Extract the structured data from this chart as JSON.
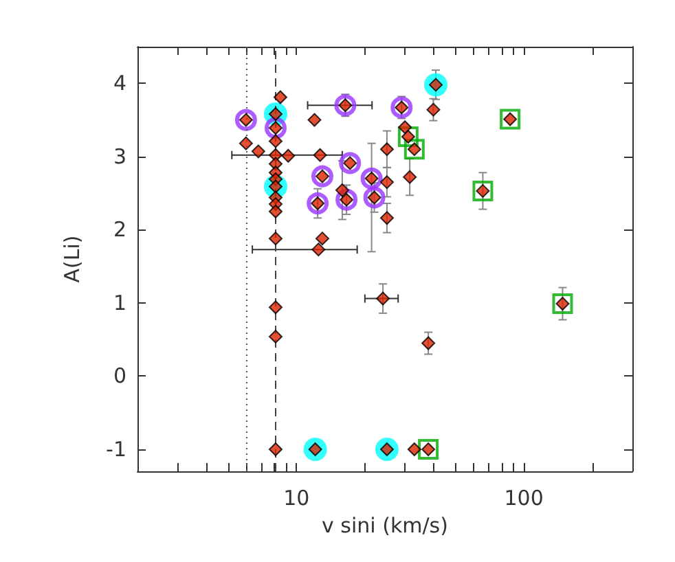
{
  "chart_data": {
    "type": "scatter",
    "xlabel": "v sini (km/s)",
    "ylabel": "A(Li)",
    "log": "x",
    "xlim": [
      2,
      300
    ],
    "xticks": [
      {
        "value": 2,
        "label": null
      },
      {
        "value": 3,
        "label": null
      },
      {
        "value": 4,
        "label": null
      },
      {
        "value": 5,
        "label": null
      },
      {
        "value": 6,
        "label": null
      },
      {
        "value": 7,
        "label": null
      },
      {
        "value": 8,
        "label": null
      },
      {
        "value": 9,
        "label": null
      },
      10,
      {
        "value": 20,
        "label": null
      },
      {
        "value": 30,
        "label": null
      },
      {
        "value": 40,
        "label": null
      },
      {
        "value": 50,
        "label": null
      },
      {
        "value": 60,
        "label": null
      },
      {
        "value": 70,
        "label": null
      },
      {
        "value": 80,
        "label": null
      },
      {
        "value": 90,
        "label": null
      },
      100,
      {
        "value": 200,
        "label": null
      },
      {
        "value": 300,
        "label": null
      }
    ],
    "ylim": [
      -1.3,
      4.5
    ],
    "yticks": [
      -1,
      0,
      1,
      2,
      3,
      4
    ],
    "ref_lines": [
      {
        "axis": "x",
        "value": 6,
        "color": "#555555",
        "line_style": "dotted"
      },
      {
        "axis": "x",
        "value": 8.1,
        "color": "#444444",
        "line_style": "dashed"
      }
    ],
    "series": [
      {
        "color": "#00ffff",
        "marker": "circle",
        "x": [
          8.1,
          8.1,
          41,
          12.1,
          25
        ],
        "values": [
          3.58,
          2.59,
          3.98,
          -1,
          -1
        ]
      },
      {
        "color": "#9933ff",
        "marker": "circle",
        "x": [
          6.0,
          8.1,
          16.4,
          29,
          17.2,
          13.0,
          21.4,
          12.4,
          16.6,
          22
        ],
        "values": [
          3.5,
          3.39,
          3.7,
          3.67,
          2.91,
          2.73,
          2.7,
          2.36,
          2.41,
          2.44
        ]
      },
      {
        "color": "#00aa00",
        "marker": "square",
        "x": [
          31,
          33,
          87,
          66,
          148,
          38
        ],
        "values": [
          3.27,
          3.1,
          3.51,
          2.53,
          0.99,
          -1
        ]
      },
      {
        "color": "#dd2200",
        "marker": "diamond",
        "x": [
          8.5,
          6.0,
          8.1,
          8.1,
          12.0,
          16.4,
          29,
          6.0,
          6.8,
          8.1,
          8.1,
          8.1,
          8.1,
          8.1,
          8.1,
          8.1,
          8.1,
          8.1,
          8.1,
          8.1,
          8.1,
          8.1,
          9.2,
          12.7,
          17.2,
          13.0,
          21.4,
          25,
          15.9,
          12.4,
          16.6,
          22,
          25,
          25,
          13.0,
          12.5,
          24,
          41,
          40,
          30,
          31,
          33,
          87,
          66,
          31.5,
          38,
          148,
          12.1,
          25,
          33,
          38
        ],
        "values": [
          3.81,
          3.5,
          3.58,
          3.39,
          3.5,
          3.7,
          3.67,
          3.18,
          3.07,
          3.21,
          3.02,
          2.9,
          2.78,
          2.69,
          2.59,
          2.44,
          2.35,
          2.25,
          1.88,
          0.94,
          0.54,
          -1,
          3.01,
          3.02,
          2.91,
          2.73,
          2.7,
          2.65,
          2.54,
          2.36,
          2.41,
          2.44,
          3.1,
          2.16,
          1.88,
          1.73,
          1.06,
          3.98,
          3.64,
          3.4,
          3.27,
          3.1,
          3.51,
          2.53,
          2.72,
          0.45,
          0.99,
          -1,
          -1,
          -1,
          -1
        ],
        "errors": [
          null,
          null,
          null,
          null,
          null,
          0.15,
          0.15,
          null,
          null,
          null,
          null,
          null,
          null,
          null,
          null,
          null,
          null,
          null,
          null,
          null,
          null,
          null,
          null,
          null,
          null,
          null,
          [
            1.7,
            3.18
          ],
          0.2,
          0.4,
          0.2,
          0.2,
          0.2,
          0.25,
          0.2,
          null,
          null,
          0.2,
          0.2,
          0.15,
          null,
          null,
          null,
          null,
          0.25,
          0.25,
          0.15,
          0.22,
          null,
          null,
          null,
          null
        ],
        "xerrors": [
          null,
          null,
          null,
          null,
          null,
          [
            11.2,
            21.5
          ],
          null,
          null,
          null,
          null,
          null,
          null,
          null,
          null,
          null,
          null,
          null,
          null,
          null,
          null,
          null,
          null,
          null,
          [
            5.2,
            15.9
          ],
          null,
          null,
          null,
          null,
          null,
          null,
          null,
          null,
          null,
          null,
          null,
          [
            6.4,
            18.5
          ],
          [
            20,
            28
          ],
          null,
          null,
          null,
          null,
          null,
          null,
          null,
          null,
          null,
          null,
          null,
          null,
          null,
          null
        ]
      }
    ]
  }
}
